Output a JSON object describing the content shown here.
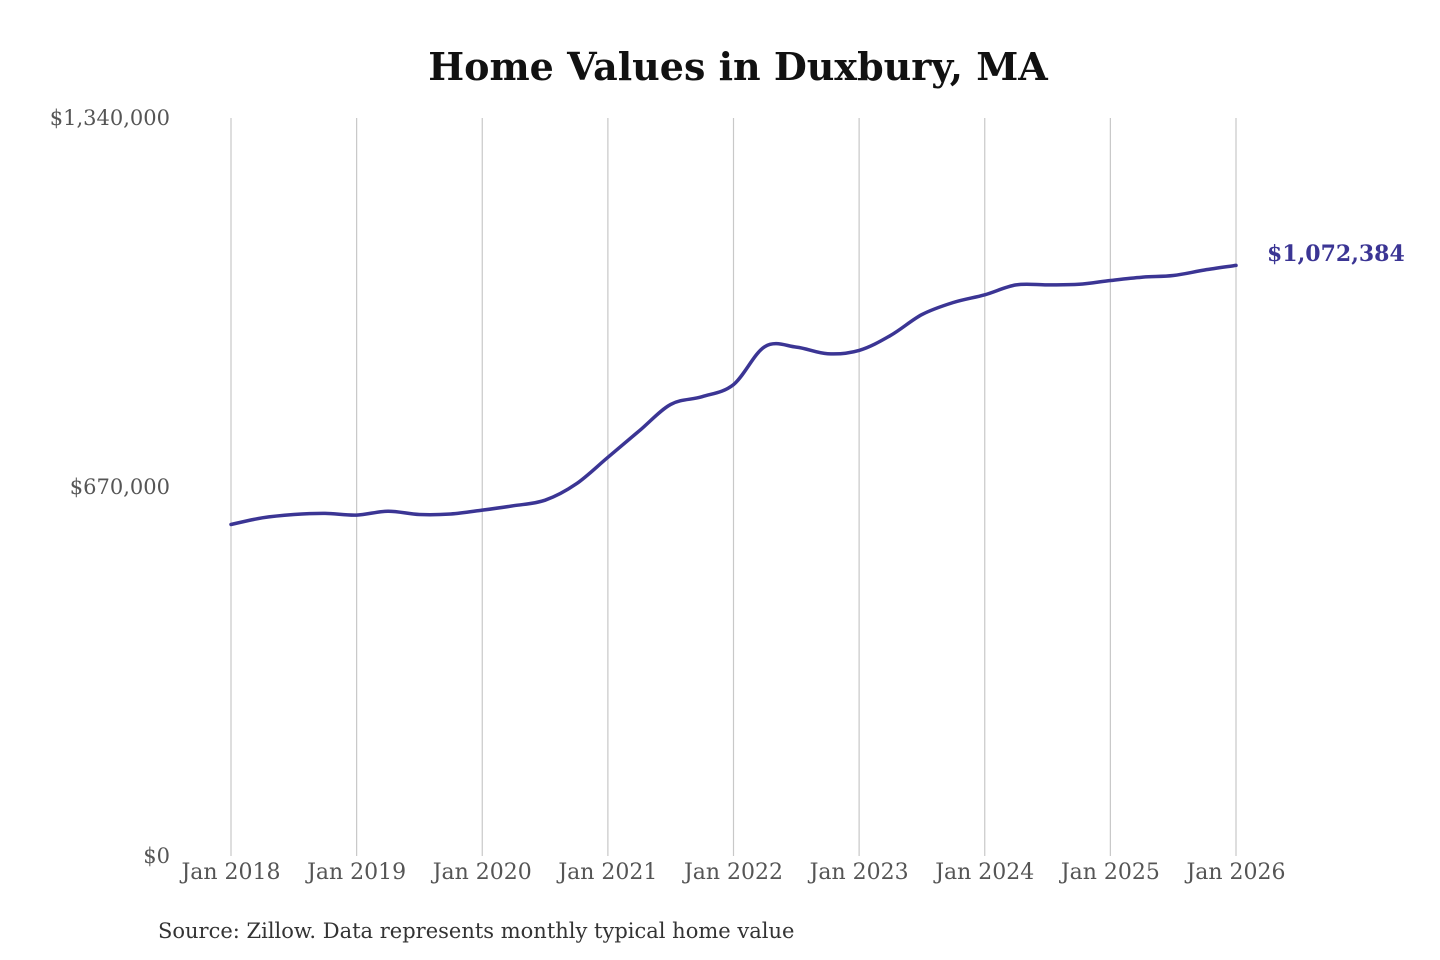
{
  "chart_data": {
    "type": "line",
    "title": "Home Values in Duxbury, MA",
    "xlabel": "",
    "ylabel": "",
    "ylim": [
      0,
      1340000
    ],
    "y_ticks": [
      "$0",
      "$670,000",
      "$1,340,000"
    ],
    "y_tick_values": [
      0,
      670000,
      1340000
    ],
    "x_ticks": [
      "Jan 2018",
      "Jan 2019",
      "Jan 2020",
      "Jan 2021",
      "Jan 2022",
      "Jan 2023",
      "Jan 2024",
      "Jan 2025",
      "Jan 2026"
    ],
    "grid": "vertical",
    "line_color": "#3b3594",
    "series": [
      {
        "x": [
          "2018-01",
          "2018-04",
          "2018-07",
          "2018-10",
          "2019-01",
          "2019-04",
          "2019-07",
          "2019-10",
          "2020-01",
          "2020-04",
          "2020-07",
          "2020-10",
          "2021-01",
          "2021-04",
          "2021-07",
          "2021-10",
          "2022-01",
          "2022-04",
          "2022-07",
          "2022-10",
          "2023-01",
          "2023-04",
          "2023-07",
          "2023-10",
          "2024-01",
          "2024-04",
          "2024-07",
          "2024-10",
          "2025-01",
          "2025-04",
          "2025-07",
          "2025-10",
          "2026-01"
        ],
        "values": [
          602000,
          614000,
          620000,
          622000,
          619000,
          626000,
          620000,
          621000,
          628000,
          636000,
          646000,
          676000,
          724000,
          772000,
          820000,
          834000,
          856000,
          925000,
          924000,
          912000,
          918000,
          945000,
          983000,
          1005000,
          1019000,
          1037000,
          1037000,
          1038000,
          1045000,
          1051000,
          1054000,
          1064000,
          1072384
        ]
      }
    ],
    "end_label": "$1,072,384"
  },
  "source_note": "Source: Zillow. Data represents monthly typical home value"
}
